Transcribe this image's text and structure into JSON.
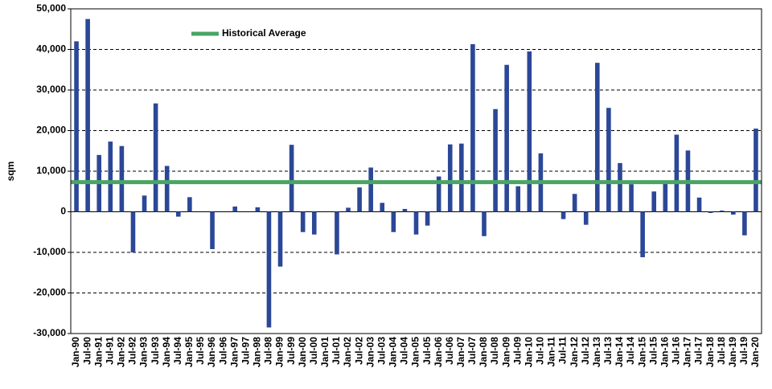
{
  "chart_data": {
    "type": "bar",
    "y_label": "sqm",
    "categories": [
      "Jan-90",
      "Jul-90",
      "Jan-91",
      "Jul-91",
      "Jan-92",
      "Jul-92",
      "Jan-93",
      "Jul-93",
      "Jan-94",
      "Jul-94",
      "Jan-95",
      "Jul-95",
      "Jan-96",
      "Jul-96",
      "Jan-97",
      "Jul-97",
      "Jan-98",
      "Jul-98",
      "Jan-99",
      "Jul-99",
      "Jan-00",
      "Jul-00",
      "Jan-01",
      "Jul-01",
      "Jan-02",
      "Jul-02",
      "Jan-03",
      "Jul-03",
      "Jan-04",
      "Jul-04",
      "Jan-05",
      "Jul-05",
      "Jan-06",
      "Jul-06",
      "Jan-07",
      "Jul-07",
      "Jan-08",
      "Jul-08",
      "Jan-09",
      "Jul-09",
      "Jan-10",
      "Jul-10",
      "Jan-11",
      "Jul-11",
      "Jan-12",
      "Jul-12",
      "Jan-13",
      "Jul-13",
      "Jan-14",
      "Jul-14",
      "Jan-15",
      "Jul-15",
      "Jan-16",
      "Jul-16",
      "Jan-17",
      "Jul-17",
      "Jan-18",
      "Jul-18",
      "Jan-19",
      "Jul-19",
      "Jan-20"
    ],
    "values": [
      42000,
      47500,
      14000,
      17300,
      16200,
      -10000,
      4000,
      26700,
      11300,
      -1200,
      3600,
      0,
      -9200,
      0,
      1300,
      0,
      1100,
      -28500,
      -13500,
      16500,
      -5000,
      -5600,
      0,
      -10500,
      1000,
      6000,
      10900,
      2200,
      -5000,
      700,
      -5600,
      -3400,
      8700,
      16600,
      16800,
      41300,
      -6000,
      25300,
      36200,
      6300,
      39500,
      14400,
      0,
      -1800,
      4400,
      -3200,
      36700,
      25600,
      12000,
      6800,
      -11200,
      5000,
      7000,
      19000,
      15100,
      3500,
      -300,
      300,
      -700,
      -5800,
      20500
    ],
    "color": "#2b4797",
    "average": {
      "name": "Historical Average",
      "value": 7300,
      "color": "#4aa564"
    },
    "ylim": [
      -30000,
      50000
    ],
    "yticks": [
      {
        "value": -30000,
        "label": "-30,000"
      },
      {
        "value": -20000,
        "label": "-20,000"
      },
      {
        "value": -10000,
        "label": "-10,000"
      },
      0,
      {
        "value": 10000,
        "label": "10,000"
      },
      {
        "value": 20000,
        "label": "20,000"
      },
      {
        "value": 30000,
        "label": "30,000"
      },
      {
        "value": 40000,
        "label": "40,000"
      },
      {
        "value": 50000,
        "label": "50,000"
      }
    ],
    "grid": true
  }
}
